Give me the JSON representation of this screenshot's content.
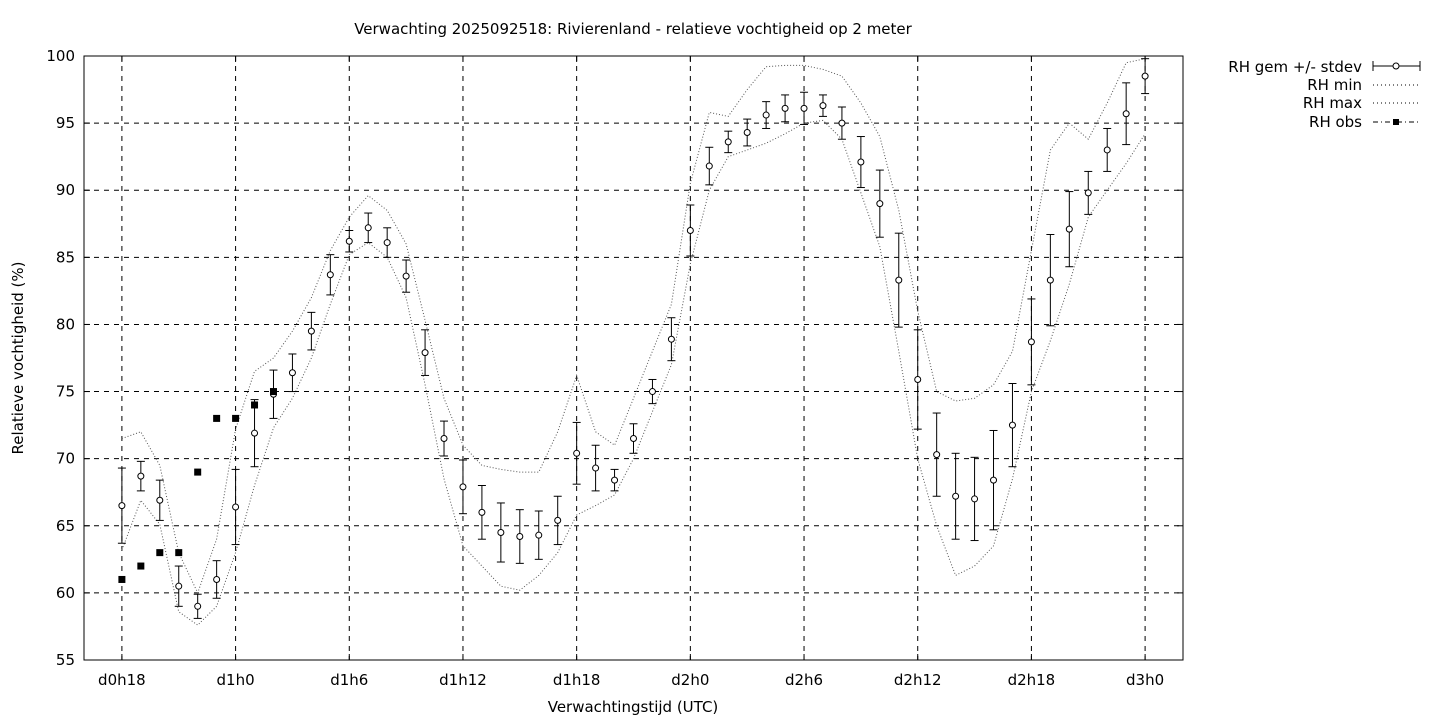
{
  "chart_data": {
    "type": "line",
    "title": "Verwachting 2025092518: Rivierenland - relatieve vochtigheid op 2 meter",
    "xlabel": "Verwachtingstijd (UTC)",
    "ylabel": "Relatieve vochtigheid (%)",
    "xlim": [
      -2,
      56
    ],
    "ylim": [
      55,
      100
    ],
    "grid": true,
    "legend_position": "outside-right",
    "x_ticks": [
      {
        "value": 0,
        "label": "d0h18"
      },
      {
        "value": 6,
        "label": "d1h0"
      },
      {
        "value": 12,
        "label": "d1h6"
      },
      {
        "value": 18,
        "label": "d1h12"
      },
      {
        "value": 24,
        "label": "d1h18"
      },
      {
        "value": 30,
        "label": "d2h0"
      },
      {
        "value": 36,
        "label": "d2h6"
      },
      {
        "value": 42,
        "label": "d2h12"
      },
      {
        "value": 48,
        "label": "d2h18"
      },
      {
        "value": 54,
        "label": "d3h0"
      }
    ],
    "y_ticks": [
      {
        "value": 55,
        "label": "55"
      },
      {
        "value": 60,
        "label": "60"
      },
      {
        "value": 65,
        "label": "65"
      },
      {
        "value": 70,
        "label": "70"
      },
      {
        "value": 75,
        "label": "75"
      },
      {
        "value": 80,
        "label": "80"
      },
      {
        "value": 85,
        "label": "85"
      },
      {
        "value": 90,
        "label": "90"
      },
      {
        "value": 95,
        "label": "95"
      },
      {
        "value": 100,
        "label": "100"
      }
    ],
    "series": [
      {
        "name": "RH gem +/- stdev",
        "style": "errorbars-circles",
        "x": [
          0,
          1,
          2,
          3,
          4,
          5,
          6,
          7,
          8,
          9,
          10,
          11,
          12,
          13,
          14,
          15,
          16,
          17,
          18,
          19,
          20,
          21,
          22,
          23,
          24,
          25,
          26,
          27,
          28,
          29,
          30,
          31,
          32,
          33,
          34,
          35,
          36,
          37,
          38,
          39,
          40,
          41,
          42,
          43,
          44,
          45,
          46,
          47,
          48,
          49,
          50,
          51,
          52,
          53,
          54
        ],
        "mean": [
          66.5,
          68.7,
          66.9,
          60.5,
          59.0,
          61.0,
          66.4,
          71.9,
          74.8,
          76.4,
          79.5,
          83.7,
          86.2,
          87.2,
          86.1,
          83.6,
          77.9,
          71.5,
          67.9,
          66.0,
          64.5,
          64.2,
          64.3,
          65.4,
          70.4,
          69.3,
          68.4,
          71.5,
          75.0,
          78.9,
          87.0,
          91.8,
          93.6,
          94.3,
          95.6,
          96.1,
          96.1,
          96.3,
          95.0,
          92.1,
          89.0,
          83.3,
          75.9,
          70.3,
          67.2,
          67.0,
          68.4,
          72.5,
          78.7,
          83.3,
          87.1,
          89.8,
          93.0,
          95.7,
          98.5
        ],
        "stdev": [
          2.8,
          1.1,
          1.5,
          1.5,
          0.9,
          1.4,
          2.8,
          2.5,
          1.8,
          1.4,
          1.4,
          1.5,
          0.8,
          1.1,
          1.1,
          1.2,
          1.7,
          1.3,
          2.0,
          2.0,
          2.2,
          2.0,
          1.8,
          1.8,
          2.3,
          1.7,
          0.8,
          1.1,
          0.9,
          1.6,
          1.9,
          1.4,
          0.8,
          1.0,
          1.0,
          1.0,
          1.2,
          0.8,
          1.2,
          1.9,
          2.5,
          3.5,
          3.7,
          3.1,
          3.2,
          3.1,
          3.7,
          3.1,
          3.2,
          3.4,
          2.8,
          1.6,
          1.6,
          2.3,
          1.3
        ]
      },
      {
        "name": "RH min",
        "style": "dotted",
        "x": [
          0,
          1,
          2,
          3,
          4,
          5,
          6,
          7,
          8,
          9,
          10,
          11,
          12,
          13,
          14,
          15,
          16,
          17,
          18,
          19,
          20,
          21,
          22,
          23,
          24,
          25,
          26,
          27,
          28,
          29,
          30,
          31,
          32,
          33,
          34,
          35,
          36,
          37,
          38,
          39,
          40,
          41,
          42,
          43,
          44,
          45,
          46,
          47,
          48,
          49,
          50,
          51,
          52,
          53,
          54
        ],
        "values": [
          63.2,
          66.9,
          65.1,
          58.6,
          57.6,
          59.0,
          63.0,
          68.0,
          72.3,
          74.5,
          77.5,
          81.5,
          85.2,
          86.1,
          85.0,
          82.0,
          75.5,
          68.5,
          63.5,
          62.0,
          60.5,
          60.2,
          61.3,
          63.0,
          65.8,
          66.5,
          67.3,
          70.0,
          73.5,
          77.0,
          84.5,
          90.0,
          92.5,
          93.0,
          93.5,
          94.2,
          95.0,
          95.2,
          93.8,
          89.8,
          85.8,
          78.0,
          70.0,
          65.0,
          61.3,
          62.0,
          63.5,
          68.5,
          75.0,
          78.8,
          83.0,
          88.0,
          90.0,
          92.0,
          94.2
        ]
      },
      {
        "name": "RH max",
        "style": "dotted",
        "x": [
          0,
          1,
          2,
          3,
          4,
          5,
          6,
          7,
          8,
          9,
          10,
          11,
          12,
          13,
          14,
          15,
          16,
          17,
          18,
          19,
          20,
          21,
          22,
          23,
          24,
          25,
          26,
          27,
          28,
          29,
          30,
          31,
          32,
          33,
          34,
          35,
          36,
          37,
          38,
          39,
          40,
          41,
          42,
          43,
          44,
          45,
          46,
          47,
          48,
          49,
          50,
          51,
          52,
          53,
          54
        ],
        "values": [
          71.5,
          72.0,
          69.5,
          63.0,
          60.0,
          64.0,
          72.2,
          76.5,
          77.5,
          79.5,
          82.0,
          85.5,
          88.0,
          89.6,
          88.5,
          86.0,
          80.3,
          74.5,
          71.0,
          69.5,
          69.2,
          69.0,
          69.0,
          72.0,
          76.2,
          72.0,
          71.0,
          74.5,
          78.0,
          81.5,
          90.5,
          95.8,
          95.5,
          97.5,
          99.2,
          99.3,
          99.3,
          99.0,
          98.5,
          96.5,
          94.0,
          88.5,
          81.0,
          75.0,
          74.3,
          74.5,
          75.5,
          78.0,
          85.5,
          93.0,
          95.0,
          93.8,
          96.5,
          99.5,
          99.8
        ]
      },
      {
        "name": "RH obs",
        "style": "squares",
        "x": [
          0,
          1,
          2,
          3,
          4,
          5,
          6,
          7,
          8
        ],
        "values": [
          61,
          62,
          63,
          63,
          69,
          73,
          73,
          74,
          75
        ]
      }
    ]
  }
}
